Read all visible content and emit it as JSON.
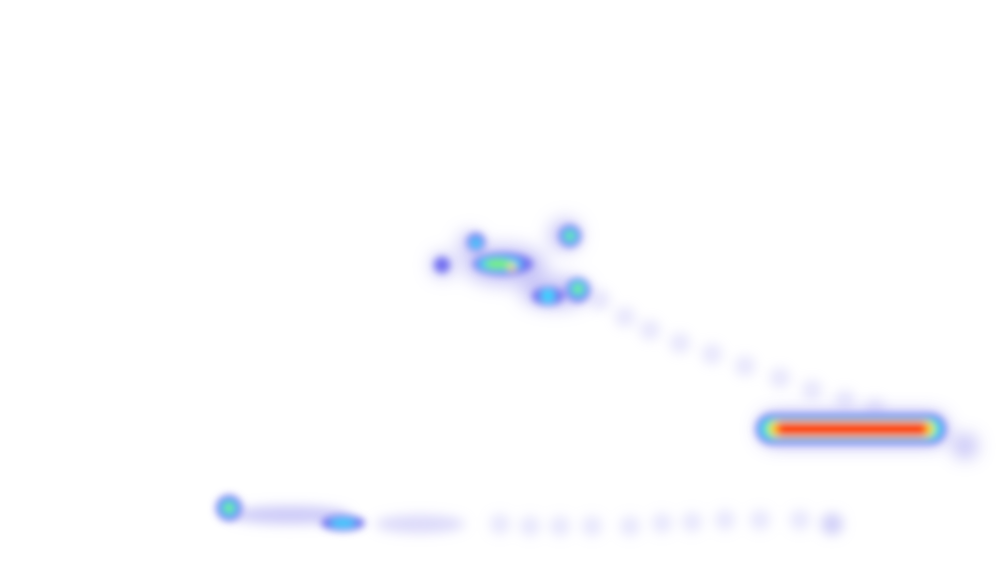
{
  "heatmap": {
    "background": "#ffffff",
    "palette": {
      "faint": "#b7b4f5",
      "low": "#6f6df0",
      "cyan": "#39d7ff",
      "green": "#7bf06b",
      "yellow": "#ffe44a",
      "orange": "#ff8a1f",
      "red": "#ff2a00"
    },
    "legend": "none",
    "labels": []
  }
}
